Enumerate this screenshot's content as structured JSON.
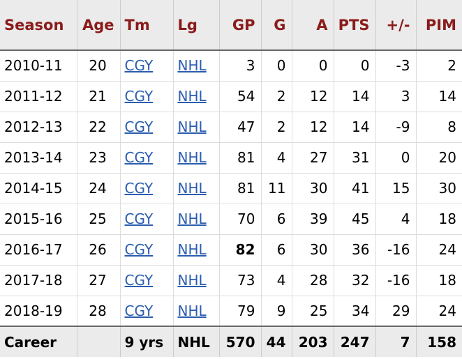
{
  "headers": [
    "Season",
    "Age",
    "Tm",
    "Lg",
    "GP",
    "G",
    "A",
    "PTS",
    "+/-",
    "PIM"
  ],
  "rows": [
    {
      "season": "2010-11",
      "age": "20",
      "tm": "CGY",
      "lg": "NHL",
      "gp": "3",
      "g": "0",
      "a": "0",
      "pts": "0",
      "pm": "-3",
      "pim": "2"
    },
    {
      "season": "2011-12",
      "age": "21",
      "tm": "CGY",
      "lg": "NHL",
      "gp": "54",
      "g": "2",
      "a": "12",
      "pts": "14",
      "pm": "3",
      "pim": "14"
    },
    {
      "season": "2012-13",
      "age": "22",
      "tm": "CGY",
      "lg": "NHL",
      "gp": "47",
      "g": "2",
      "a": "12",
      "pts": "14",
      "pm": "-9",
      "pim": "8"
    },
    {
      "season": "2013-14",
      "age": "23",
      "tm": "CGY",
      "lg": "NHL",
      "gp": "81",
      "g": "4",
      "a": "27",
      "pts": "31",
      "pm": "0",
      "pim": "20"
    },
    {
      "season": "2014-15",
      "age": "24",
      "tm": "CGY",
      "lg": "NHL",
      "gp": "81",
      "g": "11",
      "a": "30",
      "pts": "41",
      "pm": "15",
      "pim": "30"
    },
    {
      "season": "2015-16",
      "age": "25",
      "tm": "CGY",
      "lg": "NHL",
      "gp": "70",
      "g": "6",
      "a": "39",
      "pts": "45",
      "pm": "4",
      "pim": "18"
    },
    {
      "season": "2016-17",
      "age": "26",
      "tm": "CGY",
      "lg": "NHL",
      "gp": "82",
      "g": "6",
      "a": "30",
      "pts": "36",
      "pm": "-16",
      "pim": "24",
      "gp_bold": true
    },
    {
      "season": "2017-18",
      "age": "27",
      "tm": "CGY",
      "lg": "NHL",
      "gp": "73",
      "g": "4",
      "a": "28",
      "pts": "32",
      "pm": "-16",
      "pim": "18"
    },
    {
      "season": "2018-19",
      "age": "28",
      "tm": "CGY",
      "lg": "NHL",
      "gp": "79",
      "g": "9",
      "a": "25",
      "pts": "34",
      "pm": "29",
      "pim": "24"
    }
  ],
  "career": {
    "label": "Career",
    "age": "",
    "tm": "9 yrs",
    "lg": "NHL",
    "gp": "570",
    "g": "44",
    "a": "203",
    "pts": "247",
    "pm": "7",
    "pim": "158"
  },
  "colors": {
    "header_text": "#8b1b1b",
    "link": "#2a5db0",
    "header_bg": "#ebebeb"
  }
}
